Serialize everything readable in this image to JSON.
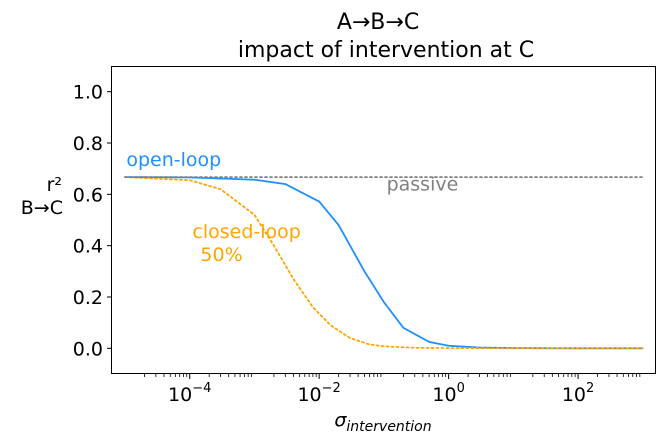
{
  "chart_data": {
    "type": "line",
    "title": "A→B→C",
    "subtitle": "impact of intervention at C",
    "ylabel_top": "r²",
    "ylabel_bottom": "B→C",
    "xlabel_main": "σ",
    "xlabel_sub": "intervention",
    "xscale": "log",
    "xlim": [
      6.3e-06,
      1600
    ],
    "ylim": [
      -0.1,
      1.1
    ],
    "grid": false,
    "xticks": [
      {
        "value": 0.0001,
        "base": "10",
        "exp": "−4"
      },
      {
        "value": 0.01,
        "base": "10",
        "exp": "−2"
      },
      {
        "value": 1,
        "base": "10",
        "exp": "0"
      },
      {
        "value": 100,
        "base": "10",
        "exp": "2"
      }
    ],
    "yticks": [
      {
        "value": 0.0,
        "label": "0.0"
      },
      {
        "value": 0.2,
        "label": "0.2"
      },
      {
        "value": 0.4,
        "label": "0.4"
      },
      {
        "value": 0.6,
        "label": "0.6"
      },
      {
        "value": 0.8,
        "label": "0.8"
      },
      {
        "value": 1.0,
        "label": "1.0"
      }
    ],
    "series": [
      {
        "id": "open",
        "color": "#1e90ff",
        "style": "solid",
        "x": [
          1e-05,
          0.0001,
          0.001,
          0.003,
          0.01,
          0.02,
          0.05,
          0.1,
          0.2,
          0.5,
          1,
          3,
          10,
          100,
          1000
        ],
        "y": [
          0.667,
          0.666,
          0.657,
          0.64,
          0.572,
          0.48,
          0.3,
          0.18,
          0.08,
          0.025,
          0.01,
          0.003,
          0.001,
          0.0,
          0.0
        ]
      },
      {
        "id": "closed",
        "color": "#ffa500",
        "style": "dotted",
        "x": [
          1e-05,
          0.0001,
          0.0003,
          0.001,
          0.002,
          0.004,
          0.008,
          0.015,
          0.03,
          0.06,
          0.1,
          0.3,
          1,
          10,
          100,
          1000
        ],
        "y": [
          0.667,
          0.655,
          0.62,
          0.52,
          0.4,
          0.27,
          0.16,
          0.09,
          0.04,
          0.015,
          0.008,
          0.002,
          0.001,
          0.0,
          0.0,
          0.0
        ]
      },
      {
        "id": "passive",
        "color": "#808080",
        "style": "dotted",
        "x": [
          1e-05,
          1000
        ],
        "y": [
          0.667,
          0.667
        ]
      }
    ],
    "annotations": [
      {
        "id": "open-loop",
        "lines": [
          "open-loop"
        ],
        "color": "#1e90ff",
        "x": 1.05e-05,
        "y": 0.71
      },
      {
        "id": "closed-loop",
        "lines": [
          "closed-loop",
          "50%"
        ],
        "color": "#ffa500",
        "x": 0.00011,
        "y": 0.43
      },
      {
        "id": "passive",
        "lines": [
          "passive"
        ],
        "color": "#808080",
        "x": 0.11,
        "y": 0.615
      }
    ]
  }
}
